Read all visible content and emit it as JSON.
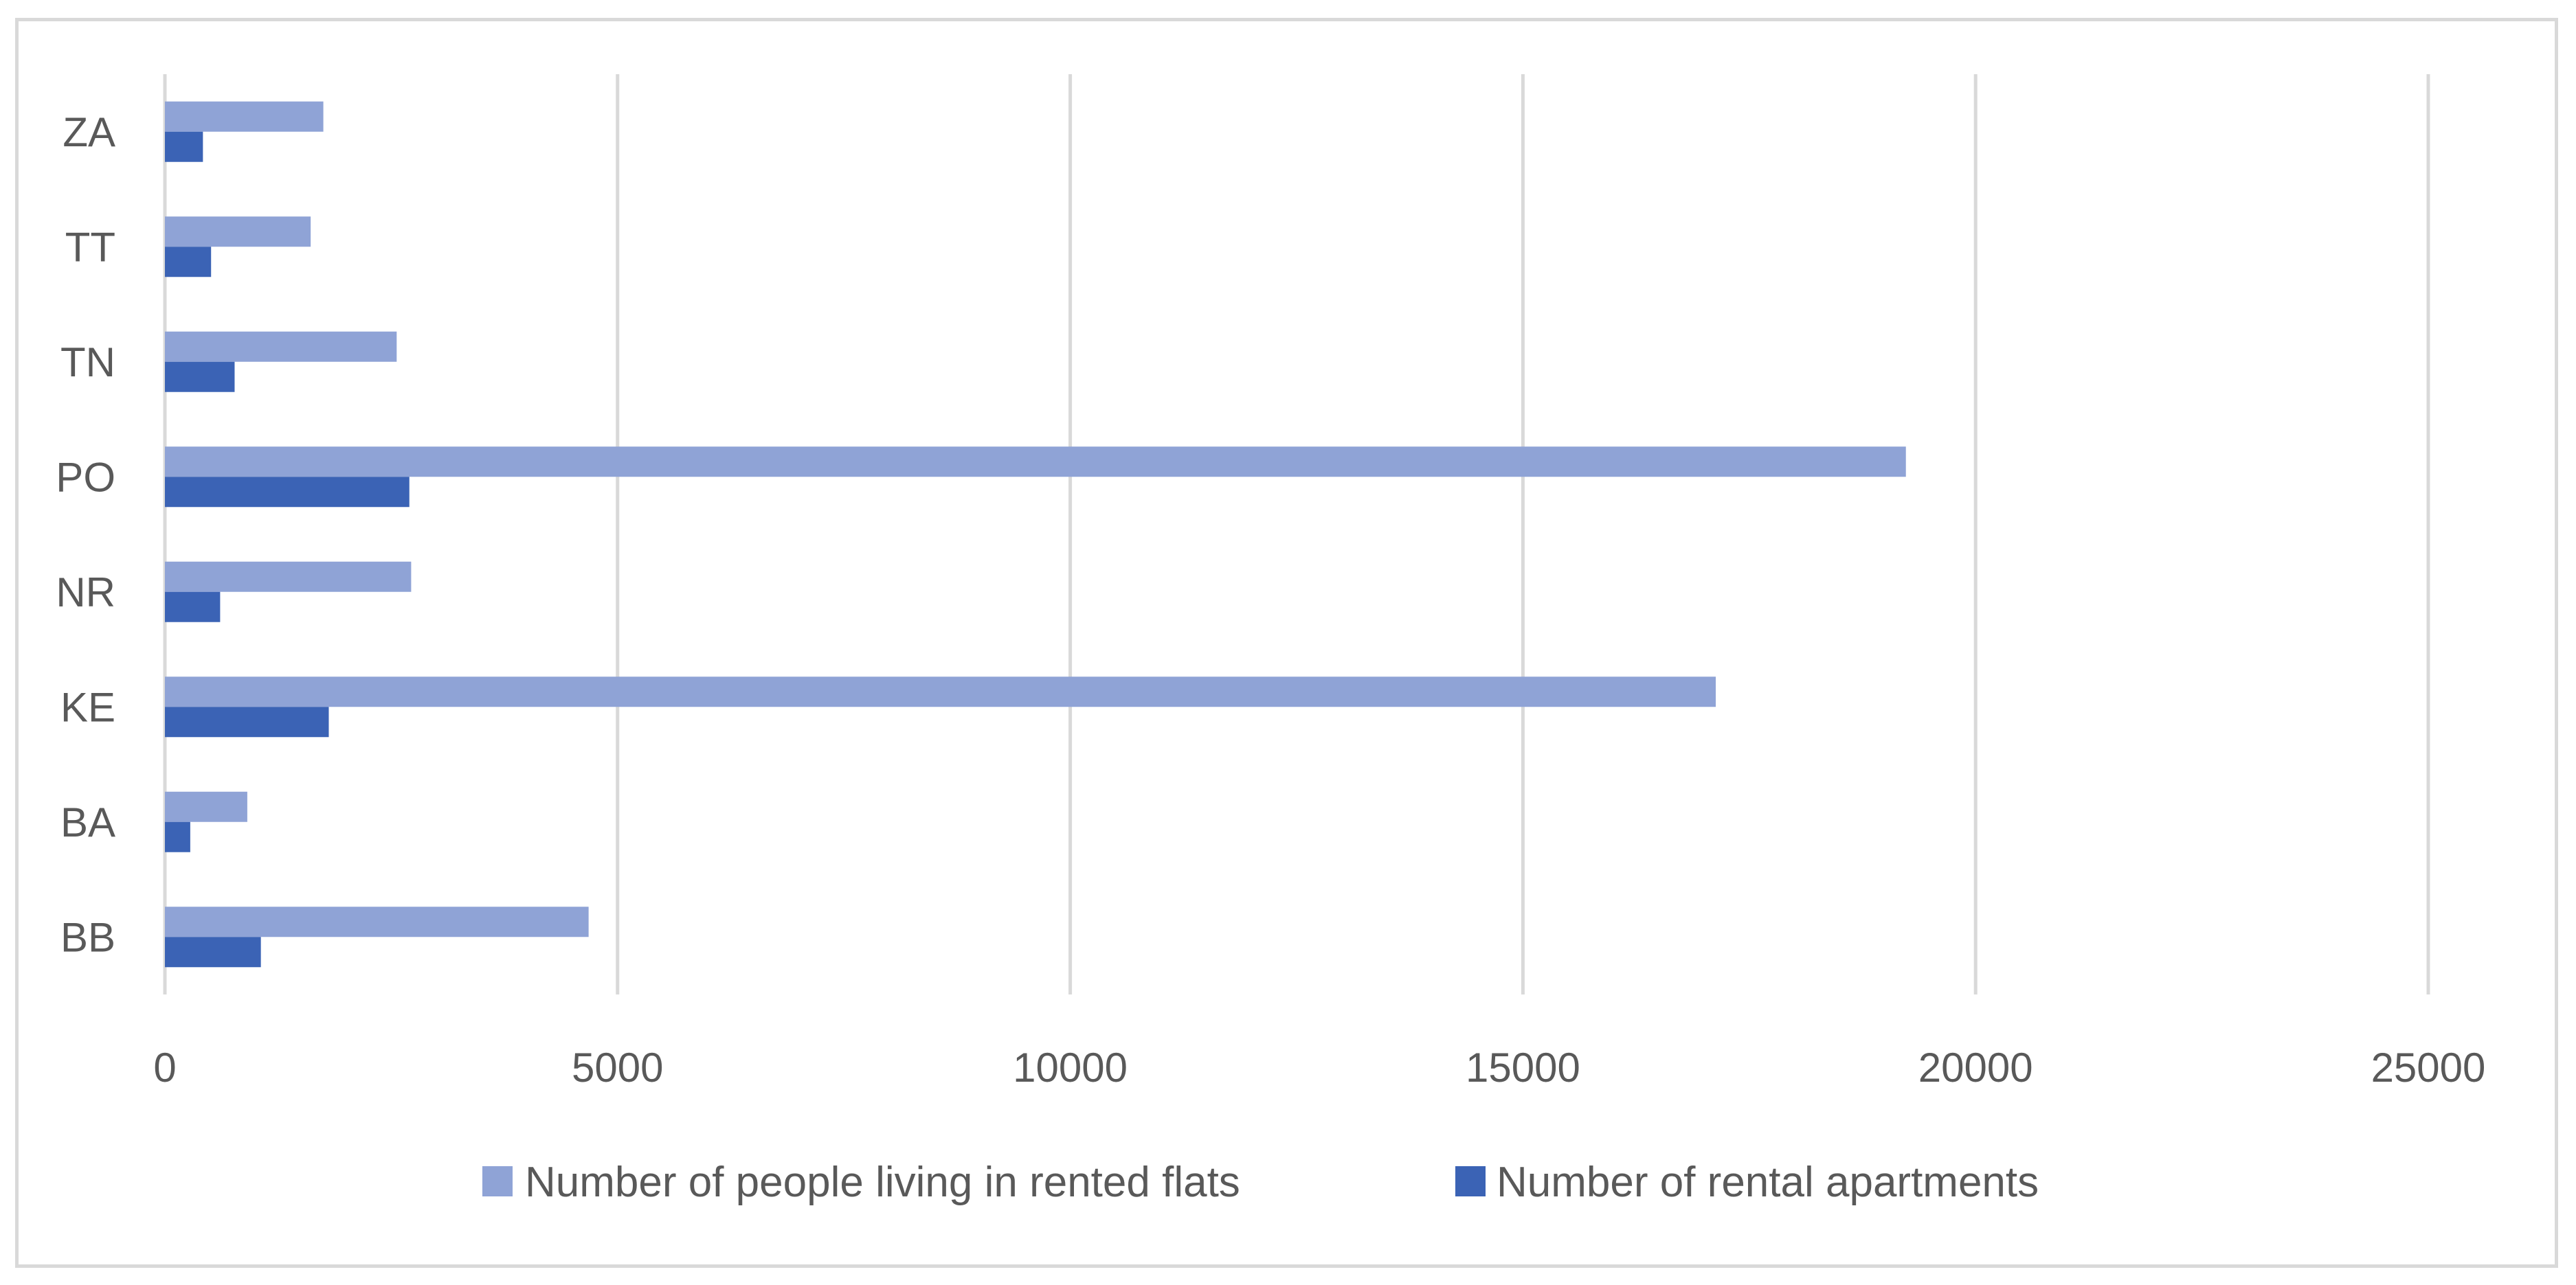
{
  "chart_data": {
    "type": "bar",
    "orientation": "horizontal",
    "categories": [
      "BB",
      "BA",
      "KE",
      "NR",
      "PO",
      "TN",
      "TT",
      "ZA"
    ],
    "series": [
      {
        "name": "Number of people living in rented flats",
        "color": "#8fa3d6",
        "values": [
          4680,
          910,
          17130,
          2720,
          19230,
          2560,
          1610,
          1750
        ]
      },
      {
        "name": "Number of rental apartments",
        "color": "#3b63b5",
        "values": [
          1060,
          280,
          1810,
          610,
          2700,
          770,
          510,
          420
        ]
      }
    ],
    "xlim": [
      0,
      25000
    ],
    "xticks": [
      "0",
      "5000",
      "10000",
      "15000",
      "20000",
      "25000"
    ],
    "grid": true,
    "legend_position": "bottom"
  }
}
